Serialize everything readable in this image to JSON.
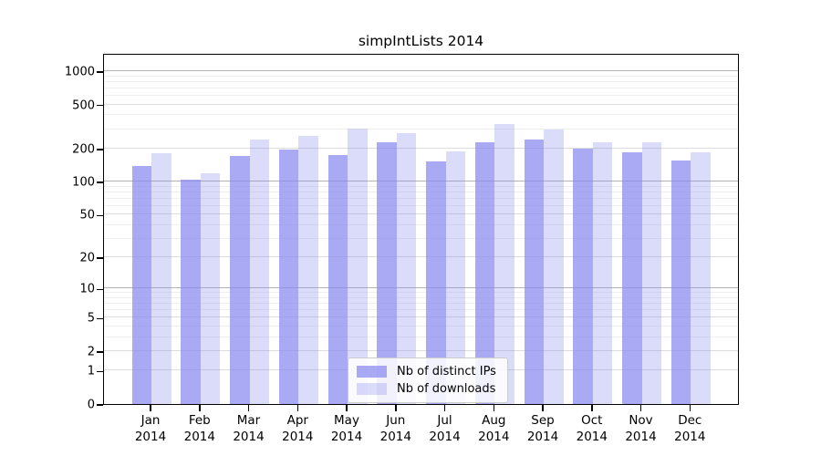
{
  "chart_data": {
    "type": "bar",
    "title": "simpIntLists 2014",
    "year": "2014",
    "categories": [
      "Jan",
      "Feb",
      "Mar",
      "Apr",
      "May",
      "Jun",
      "Jul",
      "Aug",
      "Sep",
      "Oct",
      "Nov",
      "Dec"
    ],
    "series": [
      {
        "name": "Nb of distinct IPs",
        "color": "#8888f0",
        "alpha": 0.72,
        "values": [
          140,
          105,
          170,
          195,
          173,
          230,
          154,
          230,
          241,
          199,
          186,
          155
        ]
      },
      {
        "name": "Nb of downloads",
        "color": "#8888f0",
        "alpha": 0.3,
        "values": [
          182,
          120,
          239,
          258,
          305,
          276,
          187,
          330,
          296,
          227,
          226,
          185
        ]
      }
    ],
    "y_ticks": [
      0,
      1,
      2,
      5,
      10,
      20,
      50,
      100,
      200,
      500,
      1000
    ],
    "y_scale": "log10(value+1)",
    "y_axis_max": 1460,
    "xlabel": "",
    "ylabel": "",
    "grid": true,
    "legend_position": "bottom-center",
    "frame_color": "#000000",
    "grid_major_color": "#dcdcdc",
    "grid_power_color": "#b4b4b4",
    "grid_minor_color": "#efefef"
  }
}
